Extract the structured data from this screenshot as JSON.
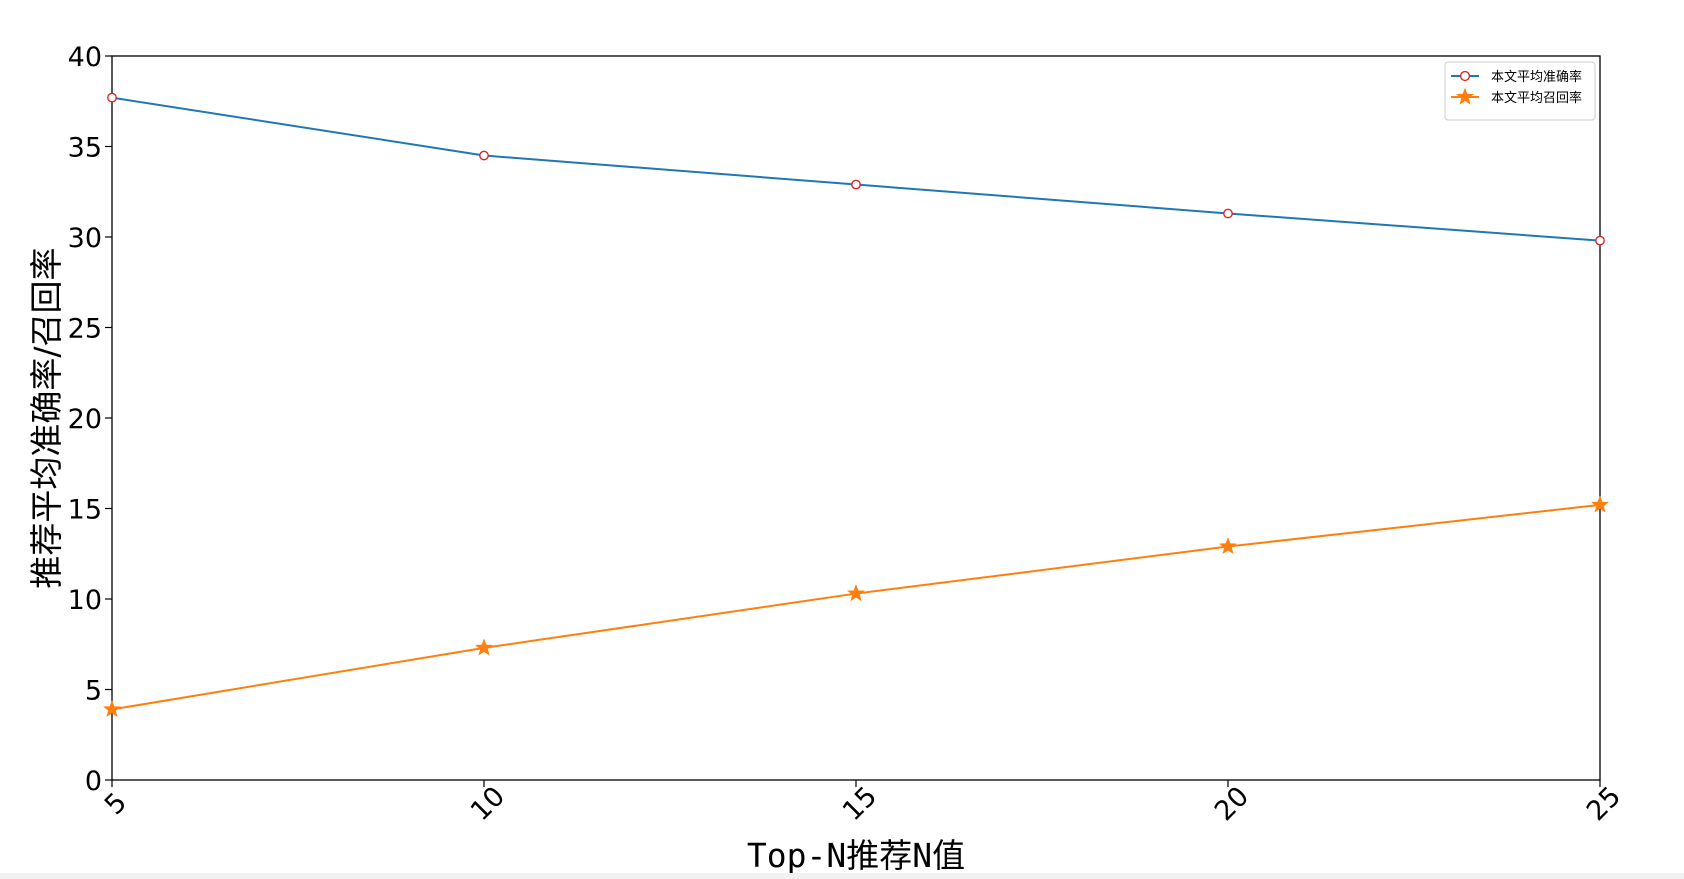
{
  "chart_data": {
    "type": "line",
    "xlabel": "Top-N推荐N值",
    "ylabel": "推荐平均准确率/召回率",
    "xlim": [
      5,
      25
    ],
    "ylim": [
      0,
      40
    ],
    "x_ticks": [
      5,
      10,
      15,
      20,
      25
    ],
    "y_ticks": [
      0,
      5,
      10,
      15,
      20,
      25,
      30,
      35,
      40
    ],
    "x_tick_rotation": -45,
    "grid": false,
    "legend_position": "top-right",
    "x": [
      5,
      10,
      15,
      20,
      25
    ],
    "series": [
      {
        "name": "本文平均准确率",
        "values": [
          37.7,
          34.5,
          32.9,
          31.3,
          29.8
        ],
        "color": "#1f77b4",
        "marker": "circle-open",
        "marker_edge_color": "#d62728"
      },
      {
        "name": "本文平均召回率",
        "values": [
          3.9,
          7.3,
          10.3,
          12.9,
          15.2
        ],
        "color": "#ff7f0e",
        "marker": "star",
        "marker_edge_color": "#ff7f0e"
      }
    ]
  }
}
